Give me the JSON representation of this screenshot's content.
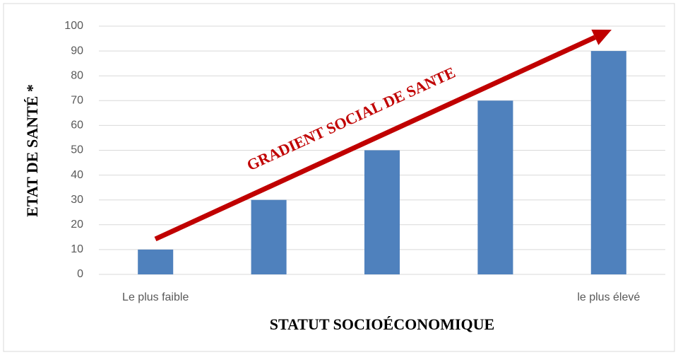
{
  "chart_data": {
    "type": "bar",
    "categories": [
      "Le plus faible",
      null,
      null,
      null,
      "le plus élevé"
    ],
    "values": [
      10,
      30,
      50,
      70,
      90
    ],
    "color": "#4f81bd",
    "ylim": [
      0,
      100
    ],
    "yticks": [
      0,
      10,
      20,
      30,
      40,
      50,
      60,
      70,
      80,
      90,
      100
    ],
    "grid": true,
    "ylabel": "ETAT DE SANTÉ *",
    "xlabel": "STATUT SOCIOÉCONOMIQUE",
    "annotation": "GRADIENT SOCIAL DE SANTE"
  }
}
